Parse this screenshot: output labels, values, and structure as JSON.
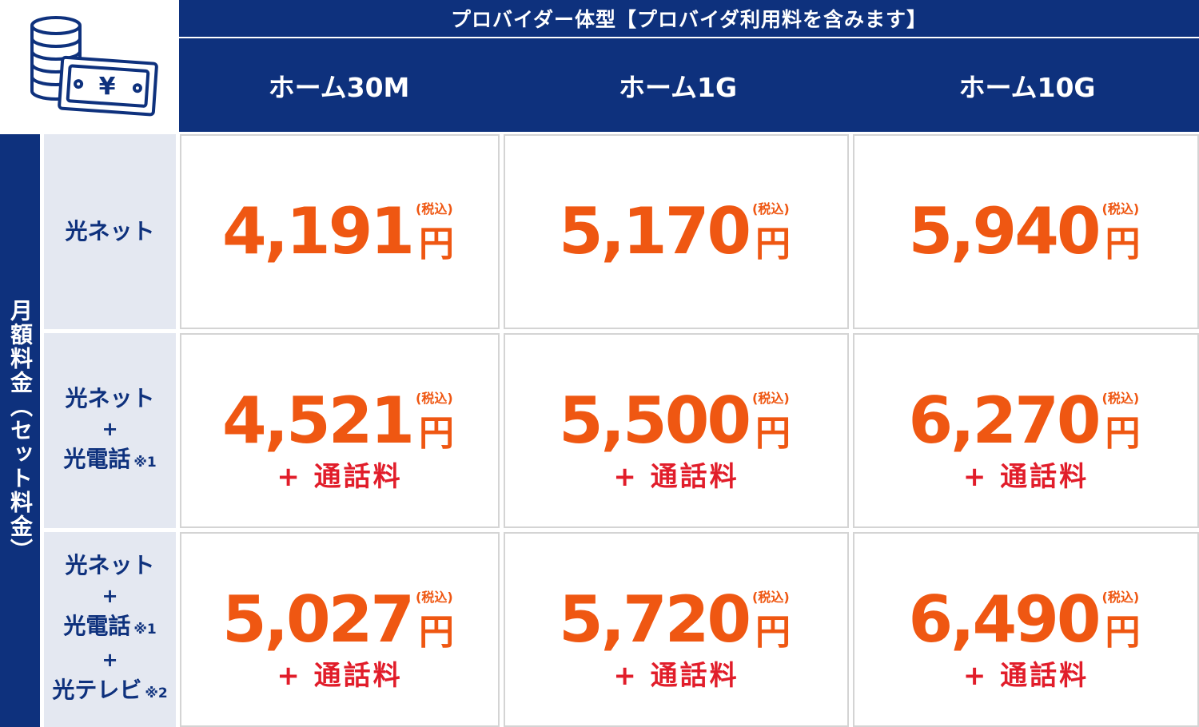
{
  "header": {
    "provider_title": "プロバイダー体型【プロバイダ利用料を含みます】",
    "plans": [
      "ホーム30M",
      "ホーム1G",
      "ホーム10G"
    ]
  },
  "side_label": "月額料金（セット料金）",
  "icon": "coins-and-yen-banknote-icon",
  "tax_label": "(税込)",
  "yen_label": "円",
  "extra_label": "+ 通話料",
  "rows": [
    {
      "lines": [
        "光ネット"
      ],
      "prices": [
        "4,191",
        "5,170",
        "5,940"
      ],
      "has_extra": false
    },
    {
      "lines": [
        "光ネット",
        "+",
        "光電話"
      ],
      "notes": [
        "",
        "",
        "※1"
      ],
      "prices": [
        "4,521",
        "5,500",
        "6,270"
      ],
      "has_extra": true
    },
    {
      "lines": [
        "光ネット",
        "+",
        "光電話",
        "+",
        "光テレビ"
      ],
      "notes": [
        "",
        "",
        "※1",
        "",
        "※2"
      ],
      "prices": [
        "5,027",
        "5,720",
        "6,490"
      ],
      "has_extra": true
    }
  ],
  "colors": {
    "navy": "#0e317d",
    "label_bg": "#e4e8f1",
    "price": "#ef5712",
    "extra": "#e11d2a"
  }
}
